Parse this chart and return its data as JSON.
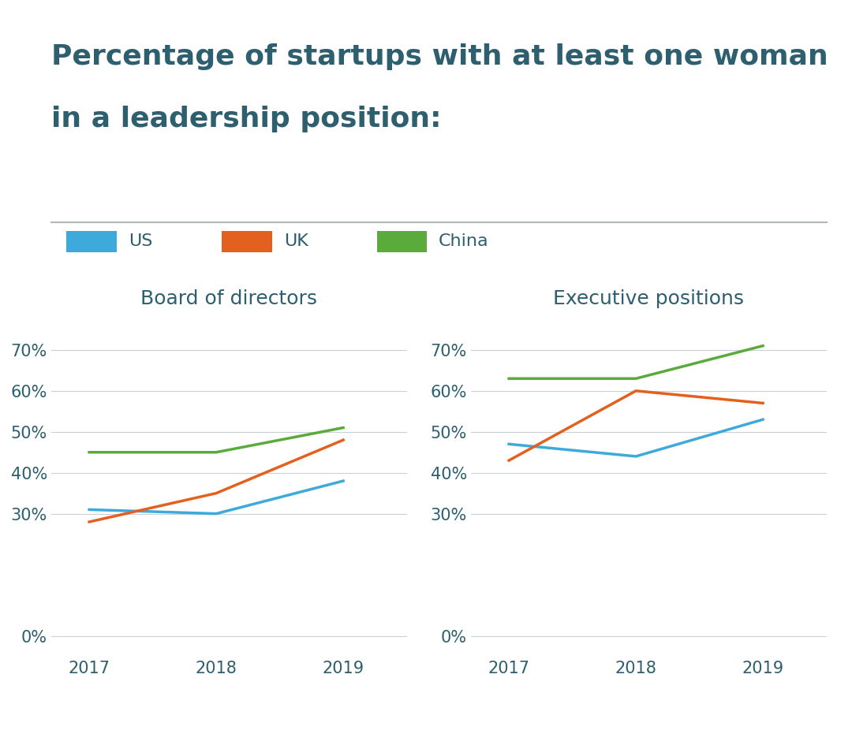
{
  "title_line1": "Percentage of startups with at least one woman",
  "title_line2": "in a leadership position:",
  "title_color": "#2d5f6e",
  "title_fontsize": 26,
  "years": [
    2017,
    2018,
    2019
  ],
  "colors": {
    "US": "#3eaadc",
    "UK": "#e3601e",
    "China": "#5aab3b"
  },
  "legend_labels": [
    "US",
    "UK",
    "China"
  ],
  "board_data": {
    "US": [
      0.31,
      0.3,
      0.38
    ],
    "UK": [
      0.28,
      0.35,
      0.48
    ],
    "China": [
      0.45,
      0.45,
      0.51
    ]
  },
  "exec_data": {
    "US": [
      0.47,
      0.44,
      0.53
    ],
    "UK": [
      0.43,
      0.6,
      0.57
    ],
    "China": [
      0.63,
      0.63,
      0.71
    ]
  },
  "subtitle_board": "Board of directors",
  "subtitle_exec": "Executive positions",
  "subtitle_fontsize": 18,
  "subtitle_color": "#2d5f6e",
  "tick_color": "#2d5f6e",
  "line_color": "#c8d0d8",
  "separator_color": "#b0b8c0",
  "yticks": [
    0.0,
    0.3,
    0.4,
    0.5,
    0.6,
    0.7
  ],
  "ytick_labels": [
    "0%",
    "30%",
    "40%",
    "50%",
    "60%",
    "70%"
  ],
  "line_width": 2.5,
  "background_color": "#ffffff"
}
